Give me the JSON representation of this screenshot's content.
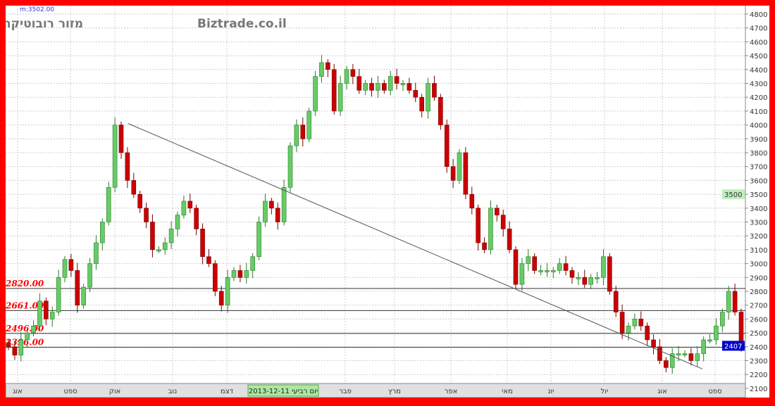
{
  "header": {
    "top_note": "m:3502.00",
    "instrument_name": "מזור רובוטיקה",
    "watermark": "Biztrade.co.il"
  },
  "chart_data": {
    "type": "candlestick",
    "ylim": [
      2100,
      4800
    ],
    "yticks": [
      2100,
      2200,
      2300,
      2400,
      2500,
      2600,
      2700,
      2800,
      2900,
      3000,
      3100,
      3200,
      3300,
      3400,
      3500,
      3600,
      3700,
      3800,
      3900,
      4000,
      4100,
      4200,
      4300,
      4400,
      4500,
      4600,
      4700,
      4800
    ],
    "grid": true,
    "x_month_labels": [
      "אוג",
      "ספט",
      "אוק",
      "נוב",
      "דצמ",
      "פבר",
      "מרץ",
      "אפר",
      "מאי",
      "יונ",
      "יול",
      "אוג",
      "ספט"
    ],
    "cursor_date_label": "יום רביעי 2013-12-11",
    "closes": [
      2400,
      2340,
      2450,
      2500,
      2550,
      2730,
      2600,
      2650,
      2900,
      3030,
      2950,
      2700,
      2830,
      3000,
      3150,
      3300,
      3550,
      4000,
      3800,
      3600,
      3500,
      3400,
      3300,
      3100,
      3100,
      3150,
      3250,
      3350,
      3450,
      3400,
      3250,
      3050,
      3000,
      2800,
      2700,
      2900,
      2950,
      2900,
      2950,
      3050,
      3300,
      3450,
      3400,
      3300,
      3550,
      3850,
      4000,
      3900,
      4100,
      4350,
      4450,
      4400,
      4100,
      4300,
      4400,
      4350,
      4250,
      4300,
      4250,
      4300,
      4250,
      4350,
      4300,
      4300,
      4250,
      4200,
      4100,
      4300,
      4200,
      4000,
      3700,
      3600,
      3800,
      3500,
      3400,
      3150,
      3100,
      3400,
      3350,
      3250,
      3100,
      2850,
      3000,
      3050,
      2950,
      2950,
      2950,
      2950,
      3000,
      2950,
      2900,
      2900,
      2850,
      2900,
      2900,
      3050,
      2800,
      2650,
      2500,
      2550,
      2600,
      2550,
      2450,
      2400,
      2300,
      2250,
      2350,
      2350,
      2350,
      2300,
      2350,
      2450,
      2450,
      2550,
      2650,
      2800,
      2650,
      2400
    ],
    "horizontal_levels": [
      {
        "value": 2820,
        "label": "2820.00"
      },
      {
        "value": 2661,
        "label": "2661.00"
      },
      {
        "value": 2496,
        "label": "2496.00"
      },
      {
        "value": 2396,
        "label": "2396.00"
      }
    ],
    "trendline": {
      "from_price": 4010,
      "to_price": 2240
    },
    "last_price": "2407",
    "axis_marker": "3500",
    "colors": {
      "up": "#66cc66",
      "down": "#cc0000",
      "level_label": "#ff0000",
      "last_price_bg": "#0000cc",
      "frame": "#ff0000"
    }
  }
}
